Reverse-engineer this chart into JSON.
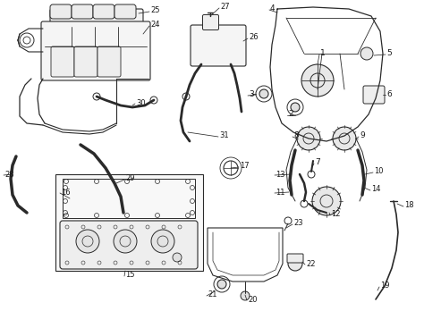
{
  "bg_color": "#ffffff",
  "lc": "#2a2a2a",
  "figsize": [
    4.74,
    3.48
  ],
  "dpi": 100,
  "font_size": 6.5,
  "font_size_small": 6.0
}
